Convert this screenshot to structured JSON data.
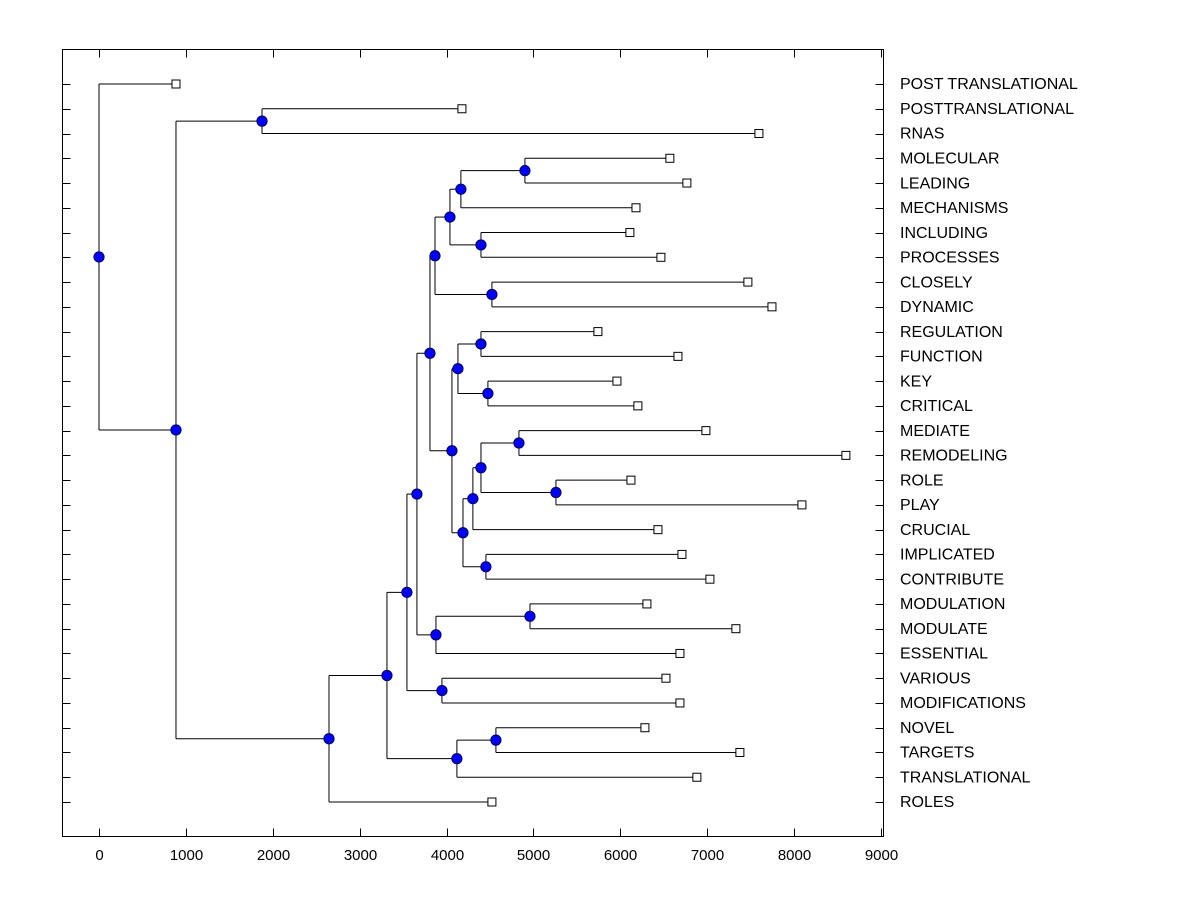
{
  "chart_data": {
    "type": "dendrogram",
    "title": "",
    "xlabel": "",
    "ylabel": "",
    "xlim": [
      -420,
      9040
    ],
    "x_ticks": [
      0,
      1000,
      2000,
      3000,
      4000,
      5000,
      6000,
      7000,
      8000,
      9000
    ],
    "x_tick_labels": [
      "0",
      "1000",
      "2000",
      "3000",
      "4000",
      "5000",
      "6000",
      "7000",
      "8000",
      "9000"
    ],
    "grid": false,
    "leaf_order": [
      "POST TRANSLATIONAL",
      "POSTTRANSLATIONAL",
      "RNAS",
      "MOLECULAR",
      "LEADING",
      "MECHANISMS",
      "INCLUDING",
      "PROCESSES",
      "CLOSELY",
      "DYNAMIC",
      "REGULATION",
      "FUNCTION",
      "KEY",
      "CRITICAL",
      "MEDIATE",
      "REMODELING",
      "ROLE",
      "PLAY",
      "CRUCIAL",
      "IMPLICATED",
      "CONTRIBUTE",
      "MODULATION",
      "MODULATE",
      "ESSENTIAL",
      "VARIOUS",
      "MODIFICATIONS",
      "NOVEL",
      "TARGETS",
      "TRANSLATIONAL",
      "ROLES"
    ],
    "leaf_values": {
      "POST TRANSLATIONAL": 886,
      "POSTTRANSLATIONAL": 4177,
      "RNAS": 7595,
      "MOLECULAR": 6570,
      "LEADING": 6766,
      "MECHANISMS": 6180,
      "INCLUDING": 6110,
      "PROCESSES": 6467,
      "CLOSELY": 7468,
      "DYNAMIC": 7745,
      "REGULATION": 5742,
      "FUNCTION": 6663,
      "KEY": 5961,
      "CRITICAL": 6202,
      "MEDIATE": 6985,
      "REMODELING": 8596,
      "ROLE": 6122,
      "PLAY": 8090,
      "CRUCIAL": 6433,
      "IMPLICATED": 6709,
      "CONTRIBUTE": 7031,
      "MODULATION": 6306,
      "MODULATE": 7330,
      "ESSENTIAL": 6686,
      "VARIOUS": 6525,
      "MODIFICATIONS": 6686,
      "NOVEL": 6283,
      "TARGETS": 7376,
      "TRANSLATIONAL": 6881,
      "ROLES": 4522
    },
    "merges": [
      {
        "id": "root",
        "value": 0,
        "children": [
          "POST TRANSLATIONAL",
          "A"
        ]
      },
      {
        "id": "A",
        "value": 886,
        "children": [
          "B",
          "C"
        ]
      },
      {
        "id": "B",
        "value": 1876,
        "children": [
          "POSTTRANSLATIONAL",
          "RNAS"
        ]
      },
      {
        "id": "C",
        "value": 2647,
        "children": [
          "D",
          "ROLES"
        ]
      },
      {
        "id": "D",
        "value": 3314,
        "children": [
          "E",
          "F"
        ]
      },
      {
        "id": "F",
        "value": 4119,
        "children": [
          "G",
          "TRANSLATIONAL"
        ]
      },
      {
        "id": "G",
        "value": 4568,
        "children": [
          "NOVEL",
          "TARGETS"
        ]
      },
      {
        "id": "E",
        "value": 3544,
        "children": [
          "H",
          "I"
        ]
      },
      {
        "id": "I",
        "value": 3947,
        "children": [
          "VARIOUS",
          "MODIFICATIONS"
        ]
      },
      {
        "id": "H",
        "value": 3659,
        "children": [
          "L",
          "J"
        ]
      },
      {
        "id": "J",
        "value": 3878,
        "children": [
          "K2",
          "ESSENTIAL"
        ]
      },
      {
        "id": "K2",
        "value": 4960,
        "children": [
          "MODULATION",
          "MODULATE"
        ]
      },
      {
        "id": "L",
        "value": 3809,
        "children": [
          "M",
          "K"
        ]
      },
      {
        "id": "M",
        "value": 3867,
        "children": [
          "N",
          "O"
        ]
      },
      {
        "id": "O",
        "value": 4522,
        "children": [
          "CLOSELY",
          "DYNAMIC"
        ]
      },
      {
        "id": "N",
        "value": 4039,
        "children": [
          "P",
          "Q"
        ]
      },
      {
        "id": "Q",
        "value": 4396,
        "children": [
          "INCLUDING",
          "PROCESSES"
        ]
      },
      {
        "id": "P",
        "value": 4165,
        "children": [
          "R",
          "MECHANISMS"
        ]
      },
      {
        "id": "R",
        "value": 4902,
        "children": [
          "MOLECULAR",
          "LEADING"
        ]
      },
      {
        "id": "K",
        "value": 4062,
        "children": [
          "S",
          "T"
        ]
      },
      {
        "id": "S",
        "value": 4131,
        "children": [
          "U",
          "V"
        ]
      },
      {
        "id": "U",
        "value": 4396,
        "children": [
          "REGULATION",
          "FUNCTION"
        ]
      },
      {
        "id": "V",
        "value": 4476,
        "children": [
          "KEY",
          "CRITICAL"
        ]
      },
      {
        "id": "T",
        "value": 4189,
        "children": [
          "W",
          "X"
        ]
      },
      {
        "id": "X",
        "value": 4453,
        "children": [
          "IMPLICATED",
          "CONTRIBUTE"
        ]
      },
      {
        "id": "W",
        "value": 4303,
        "children": [
          "Y",
          "CRUCIAL"
        ]
      },
      {
        "id": "Y",
        "value": 4396,
        "children": [
          "Z",
          "AA"
        ]
      },
      {
        "id": "Z",
        "value": 4833,
        "children": [
          "MEDIATE",
          "REMODELING"
        ]
      },
      {
        "id": "AA",
        "value": 5259,
        "children": [
          "ROLE",
          "PLAY"
        ]
      }
    ],
    "colors": {
      "internal_node": "#0000ff",
      "leaf_marker": "#ffffff",
      "line": "#000000"
    }
  }
}
